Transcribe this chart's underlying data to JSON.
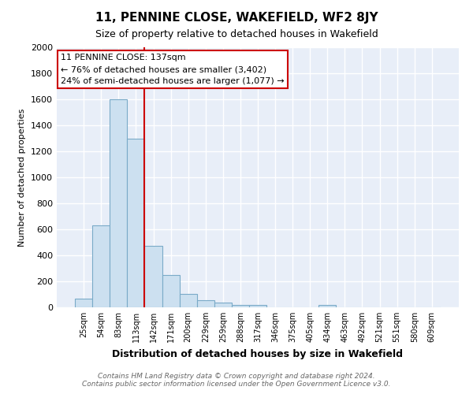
{
  "title": "11, PENNINE CLOSE, WAKEFIELD, WF2 8JY",
  "subtitle": "Size of property relative to detached houses in Wakefield",
  "xlabel": "Distribution of detached houses by size in Wakefield",
  "ylabel": "Number of detached properties",
  "footer_line1": "Contains HM Land Registry data © Crown copyright and database right 2024.",
  "footer_line2": "Contains public sector information licensed under the Open Government Licence v3.0.",
  "bar_labels": [
    "25sqm",
    "54sqm",
    "83sqm",
    "113sqm",
    "142sqm",
    "171sqm",
    "200sqm",
    "229sqm",
    "259sqm",
    "288sqm",
    "317sqm",
    "346sqm",
    "375sqm",
    "405sqm",
    "434sqm",
    "463sqm",
    "492sqm",
    "521sqm",
    "551sqm",
    "580sqm",
    "609sqm"
  ],
  "bar_values": [
    65,
    630,
    1600,
    1300,
    475,
    250,
    105,
    55,
    35,
    20,
    20,
    0,
    0,
    0,
    20,
    0,
    0,
    0,
    0,
    0,
    0
  ],
  "bar_color": "#cce0f0",
  "bar_edge_color": "#7aaac8",
  "vline_color": "#cc0000",
  "vline_x_idx": 3.5,
  "annotation_title": "11 PENNINE CLOSE: 137sqm",
  "annotation_line1": "← 76% of detached houses are smaller (3,402)",
  "annotation_line2": "24% of semi-detached houses are larger (1,077) →",
  "annotation_box_facecolor": "white",
  "annotation_box_edgecolor": "#cc0000",
  "ylim": [
    0,
    2000
  ],
  "yticks": [
    0,
    200,
    400,
    600,
    800,
    1000,
    1200,
    1400,
    1600,
    1800,
    2000
  ],
  "bg_color": "#ffffff",
  "plot_bg_color": "#e8eef8",
  "grid_color": "#ffffff",
  "title_color": "#000000",
  "subtitle_color": "#000000",
  "ylabel_color": "#000000",
  "xlabel_color": "#000000",
  "footer_color": "#666666"
}
